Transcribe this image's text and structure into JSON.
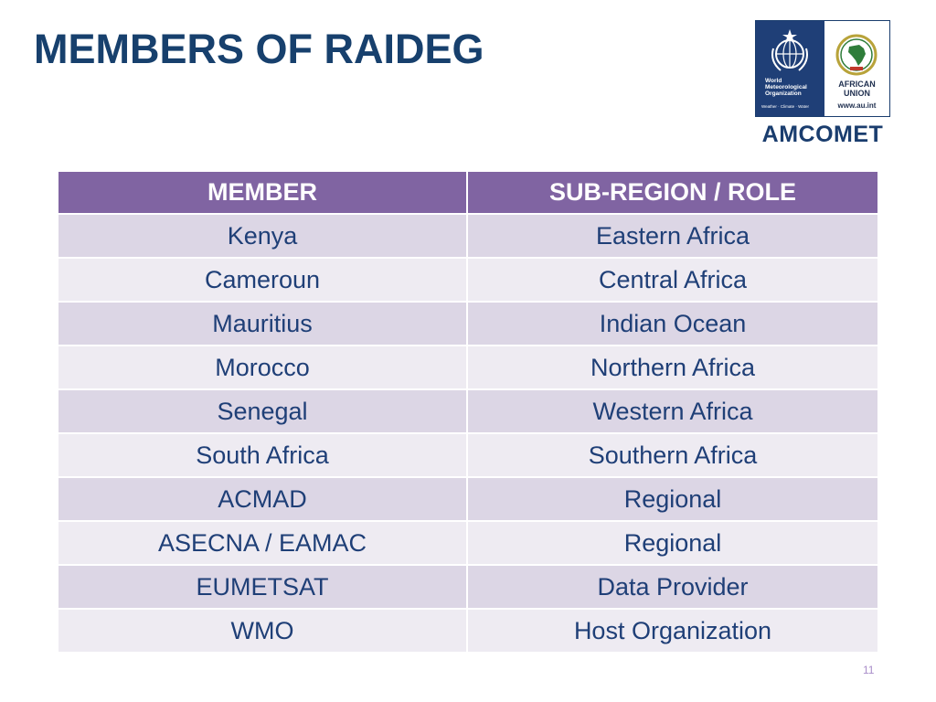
{
  "slide": {
    "title": "MEMBERS OF RAIDEG",
    "page_number": "11"
  },
  "logo": {
    "wmo_lines": [
      "World",
      "Meteorological",
      "Organization"
    ],
    "wmo_tagline": "Weather · Climate · Water",
    "au_lines": [
      "AFRICAN",
      "UNION"
    ],
    "au_url": "www.au.int",
    "amcomet": "AMCOMET",
    "colors": {
      "wmo_blue": "#1f3f77",
      "au_gold": "#b8a33a",
      "au_green": "#2f7d3a",
      "au_red": "#c0392b"
    }
  },
  "table": {
    "headers": [
      "MEMBER",
      "SUB-REGION / ROLE"
    ],
    "rows": [
      {
        "member": "Kenya",
        "role": "Eastern Africa"
      },
      {
        "member": "Cameroun",
        "role": "Central Africa"
      },
      {
        "member": "Mauritius",
        "role": "Indian Ocean"
      },
      {
        "member": "Morocco",
        "role": "Northern Africa"
      },
      {
        "member": "Senegal",
        "role": "Western Africa"
      },
      {
        "member": "South Africa",
        "role": "Southern Africa"
      },
      {
        "member": "ACMAD",
        "role": "Regional"
      },
      {
        "member": "ASECNA / EAMAC",
        "role": "Regional"
      },
      {
        "member": "EUMETSAT",
        "role": "Data Provider"
      },
      {
        "member": "WMO",
        "role": "Host Organization"
      }
    ],
    "colors": {
      "header_bg": "#8064a2",
      "row_odd": "#dcd6e5",
      "row_even": "#eeebf2",
      "text": "#1f3f77"
    }
  }
}
